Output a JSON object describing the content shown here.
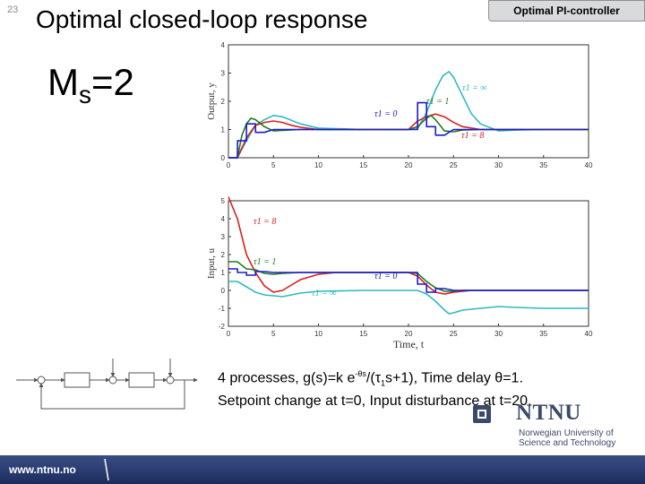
{
  "slide": {
    "number": "23",
    "title": "Optimal closed-loop response",
    "badge": "Optimal PI-controller",
    "ms_base": "M",
    "ms_sub": "s",
    "ms_value": "=2"
  },
  "description": {
    "line1_a": "4 processes, g(s)=k e",
    "line1_sup": "-θs",
    "line1_b": "/(τ",
    "line1_sub": "1",
    "line1_c": "s+1), Time delay θ=1.",
    "line2": "Setpoint change at t=0, Input disturbance at t=20,"
  },
  "logo": {
    "name": "NTNU",
    "line1": "Norwegian University of",
    "line2": "Science and Technology"
  },
  "footer": {
    "url": "www.ntnu.no"
  },
  "colors": {
    "tau_inf": "#2fb9c2",
    "tau_8": "#d81f1f",
    "tau_1": "#1e7a1e",
    "tau_0": "#1a1ad0"
  },
  "chart_data": [
    {
      "type": "line",
      "ylabel": "Output, y",
      "xlim": [
        0,
        40
      ],
      "ylim": [
        0,
        4
      ],
      "xticks": [
        "0",
        "5",
        "10",
        "15",
        "20",
        "25",
        "30",
        "35",
        "40"
      ],
      "yticks": [
        "0",
        "1",
        "2",
        "3",
        "4"
      ],
      "annotations": [
        "τ1 = 0",
        "τ1 = 1",
        "τ1 = ∞",
        "τ1 = 8"
      ],
      "series": [
        {
          "name": "τ1 = ∞",
          "x": [
            0,
            1,
            2,
            3,
            4,
            5,
            6,
            8,
            10,
            15,
            20,
            21,
            22,
            23,
            23.8,
            24.5,
            25,
            26,
            27,
            28,
            30,
            32,
            35,
            40
          ],
          "y": [
            0,
            0,
            0.6,
            1.15,
            1.35,
            1.5,
            1.45,
            1.2,
            1.05,
            1.0,
            1.0,
            1.02,
            1.6,
            2.4,
            2.9,
            3.05,
            2.85,
            2.2,
            1.55,
            1.2,
            0.95,
            0.98,
            1.0,
            1.0
          ]
        },
        {
          "name": "τ1 = 8",
          "x": [
            0,
            1,
            2,
            3,
            4,
            5,
            6,
            7,
            8,
            10,
            15,
            20,
            21,
            22,
            23,
            24,
            25,
            26,
            28,
            30,
            40
          ],
          "y": [
            0,
            0,
            0.7,
            1.15,
            1.25,
            1.3,
            1.25,
            1.15,
            1.08,
            1.0,
            1.0,
            1.0,
            1.3,
            1.45,
            1.55,
            1.45,
            1.25,
            1.1,
            1.0,
            1.0,
            1.0
          ]
        },
        {
          "name": "τ1 = 1",
          "x": [
            0,
            1,
            1.5,
            2,
            2.5,
            3,
            4,
            5,
            6,
            8,
            10,
            20,
            21,
            22,
            22.5,
            23,
            23.5,
            24,
            25,
            26,
            28,
            40
          ],
          "y": [
            0,
            0,
            0.8,
            1.2,
            1.4,
            1.35,
            1.1,
            0.95,
            0.97,
            1.0,
            1.0,
            1.0,
            1.1,
            1.4,
            1.5,
            1.35,
            1.15,
            0.95,
            0.92,
            0.98,
            1.0,
            1.0
          ]
        },
        {
          "name": "τ1 = 0",
          "x": [
            0,
            1,
            1.01,
            2,
            2.01,
            3,
            3.01,
            4,
            5,
            10,
            20,
            21,
            21.01,
            22,
            22.01,
            23,
            23.01,
            24,
            25,
            40
          ],
          "y": [
            0,
            0,
            0.6,
            0.6,
            1.2,
            1.2,
            0.9,
            0.9,
            1.0,
            1.0,
            1.0,
            1.0,
            1.95,
            1.95,
            1.1,
            1.1,
            0.8,
            0.8,
            1.0,
            1.0
          ]
        }
      ]
    },
    {
      "type": "line",
      "ylabel": "Input, u",
      "xlabel": "Time, t",
      "xlim": [
        0,
        40
      ],
      "ylim": [
        -2,
        5
      ],
      "xticks": [
        "0",
        "5",
        "10",
        "15",
        "20",
        "25",
        "30",
        "35",
        "40"
      ],
      "yticks": [
        "-2",
        "-1",
        "0",
        "1",
        "2",
        "3",
        "4",
        "5"
      ],
      "annotations": [
        "τ1 = 8",
        "τ1 = 1",
        "τ1 = 0",
        "τ1 = ∞"
      ],
      "series": [
        {
          "name": "τ1 = ∞",
          "x": [
            0,
            1,
            2,
            3,
            4,
            6,
            8,
            10,
            15,
            20,
            21,
            22,
            23,
            24,
            24.5,
            25,
            26,
            28,
            30,
            32,
            35,
            40
          ],
          "y": [
            0.5,
            0.5,
            0.2,
            -0.1,
            -0.25,
            -0.35,
            -0.15,
            -0.05,
            0,
            0,
            0,
            -0.2,
            -0.6,
            -1.1,
            -1.3,
            -1.25,
            -1.1,
            -1.0,
            -0.9,
            -0.95,
            -1.0,
            -1.0
          ]
        },
        {
          "name": "τ1 = 8",
          "x": [
            0,
            0.01,
            1,
            2,
            3,
            4,
            5,
            6,
            7,
            8,
            10,
            12,
            15,
            20,
            21,
            22,
            23,
            24,
            25,
            27,
            30,
            40
          ],
          "y": [
            5.2,
            5.2,
            4.0,
            2.0,
            1.0,
            0.25,
            -0.1,
            0.0,
            0.3,
            0.6,
            0.9,
            1.0,
            1.0,
            1.0,
            0.8,
            0.3,
            -0.1,
            -0.2,
            -0.1,
            0.0,
            0.0,
            0.0
          ]
        },
        {
          "name": "τ1 = 1",
          "x": [
            0,
            1,
            2,
            3,
            4,
            5,
            6,
            8,
            10,
            20,
            21,
            22,
            23,
            24,
            25,
            26,
            28,
            40
          ],
          "y": [
            1.6,
            1.6,
            1.2,
            1.15,
            0.95,
            0.9,
            0.95,
            1.0,
            1.0,
            1.0,
            0.95,
            0.5,
            0.15,
            -0.05,
            -0.05,
            0.0,
            0.0,
            0.0
          ]
        },
        {
          "name": "τ1 = 0",
          "x": [
            0,
            1,
            1.01,
            2,
            2.01,
            3,
            3.01,
            4,
            5,
            10,
            20,
            21,
            21.01,
            22,
            22.01,
            23,
            23.01,
            24,
            25,
            40
          ],
          "y": [
            1.2,
            1.2,
            1.0,
            1.0,
            0.85,
            0.85,
            1.05,
            1.05,
            1.0,
            1.0,
            1.0,
            1.0,
            0.35,
            0.35,
            -0.1,
            -0.1,
            0.1,
            0.1,
            0.0,
            0.0
          ]
        }
      ]
    }
  ]
}
